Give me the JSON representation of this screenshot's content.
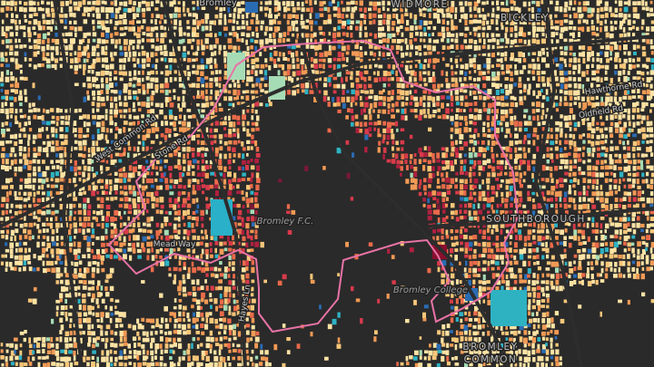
{
  "map": {
    "labels": [
      "Bromley",
      "WIDMORE",
      "BICKLEY",
      "Hawthorne Rd",
      "Oldfield Rd",
      "Stone Rd",
      "West Common Rd",
      "Bromley F.C.",
      "Bromley College",
      "SOUTHBOROUGH",
      "Mead Way",
      "Hayes Ln"
    ],
    "area_label": [
      "BROMLEY",
      "COMMON"
    ]
  }
}
